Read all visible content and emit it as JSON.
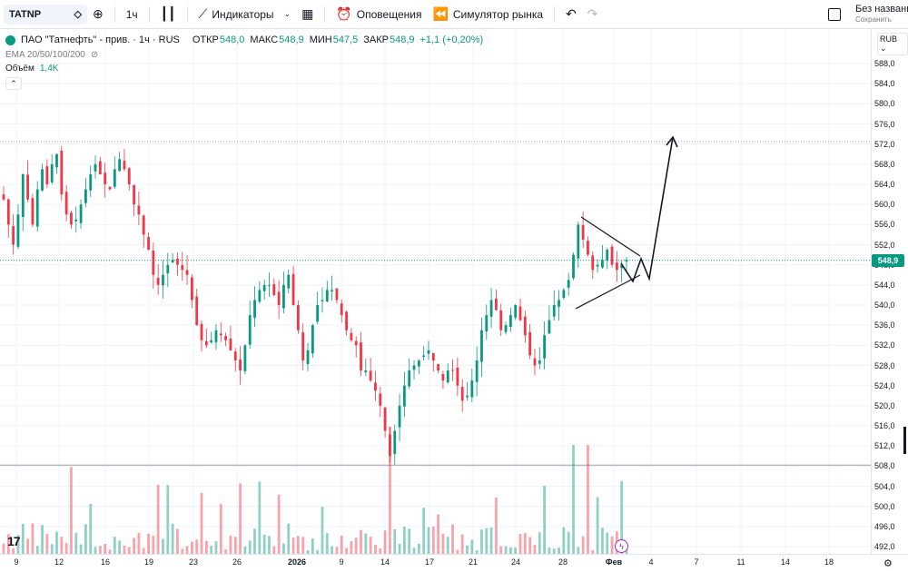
{
  "toolbar": {
    "symbol": "TATNP",
    "interval": "1ч",
    "indicators_label": "Индикаторы",
    "alerts_label": "Оповещения",
    "replay_label": "Симулятор рынка",
    "layout_name": "Без названия",
    "layout_save": "Сохранить"
  },
  "legend": {
    "title": "ПАО \"Татнефть\" - прив. · 1ч · RUS",
    "open_label": "ОТКР",
    "open": "548,0",
    "high_label": "МАКС",
    "high": "548,9",
    "low_label": "МИН",
    "low": "547,5",
    "close_label": "ЗАКР",
    "close": "548,9",
    "change": "+1,1 (+0,20%)",
    "ema_label": "EMA 20/50/100/200",
    "volume_label": "Объём",
    "volume_value": "1,4K"
  },
  "price_scale": {
    "currency": "RUB",
    "labels": [
      "588,0",
      "584,0",
      "580,0",
      "576,0",
      "572,0",
      "568,0",
      "564,0",
      "560,0",
      "556,0",
      "552,0",
      "548,0",
      "544,0",
      "540,0",
      "536,0",
      "532,0",
      "528,0",
      "524,0",
      "520,0",
      "516,0",
      "512,0",
      "508,0",
      "504,0",
      "500,0",
      "496,0",
      "492,0"
    ],
    "last_price": "548,9"
  },
  "time_scale": {
    "labels": [
      "9",
      "12",
      "16",
      "19",
      "23",
      "26",
      "2026",
      "9",
      "14",
      "17",
      "21",
      "24",
      "28",
      "Фев",
      "4",
      "7",
      "11",
      "14",
      "18"
    ]
  },
  "colors": {
    "up": "#089981",
    "down": "#f23645",
    "grid": "#f0f3fa",
    "level": "#9aa0ab"
  },
  "icons": {
    "logo": "tradingview-logo-icon",
    "bolt": "lightning-icon",
    "gear": "gear-icon"
  },
  "chart_data": {
    "type": "candlestick",
    "series": [
      {
        "name": "TATNP",
        "values": [
          561,
          556,
          552,
          558,
          566,
          561,
          556,
          563,
          567,
          564,
          568,
          570,
          562,
          558,
          556,
          557,
          560,
          563,
          566,
          568,
          566,
          564,
          563,
          567,
          569,
          567,
          564,
          560,
          558,
          554,
          551,
          546,
          544,
          546,
          548,
          549,
          548,
          547,
          546,
          541,
          536,
          533,
          532,
          533,
          535,
          534,
          533,
          531,
          529,
          527,
          532,
          538,
          541,
          543,
          544,
          544,
          542,
          540,
          544,
          546,
          540,
          535,
          529,
          531,
          536,
          540,
          541,
          543,
          543,
          541,
          538,
          535,
          533,
          532,
          527,
          527,
          525,
          523,
          520,
          515,
          510,
          515,
          520,
          524,
          527,
          528,
          529,
          530,
          531,
          529,
          527,
          525,
          527,
          527,
          524,
          521,
          522,
          525,
          529,
          535,
          538,
          541,
          539,
          535,
          536,
          538,
          540,
          537,
          534,
          530,
          528,
          529,
          534,
          537,
          540,
          541,
          543,
          545,
          550,
          556,
          553,
          550,
          547,
          548,
          549,
          551,
          548,
          547,
          548,
          549
        ]
      }
    ],
    "annotation": "symmetrical triangle with breakout arrow",
    "ylim": [
      490,
      590
    ]
  }
}
